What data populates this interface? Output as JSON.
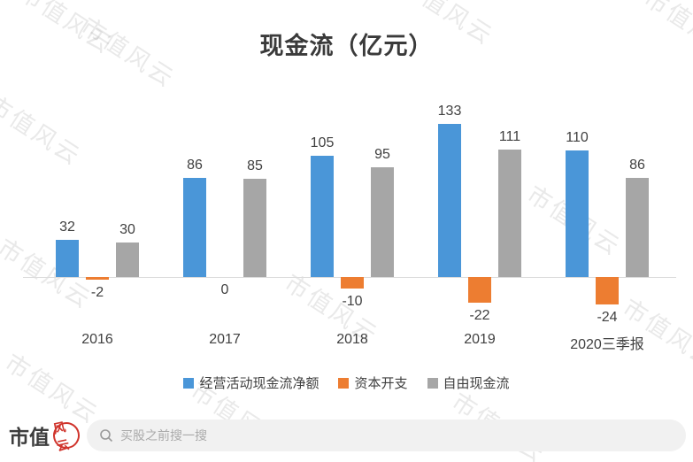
{
  "title": "现金流（亿元）",
  "watermark": {
    "text": "市值风云"
  },
  "logo": {
    "brand": "市值",
    "seal": "风云"
  },
  "search": {
    "placeholder": "买股之前搜一搜",
    "icon": "search-icon"
  },
  "chart_data": {
    "type": "bar",
    "title": "现金流（亿元）",
    "categories": [
      "2016",
      "2017",
      "2018",
      "2019",
      "2020三季报"
    ],
    "series": [
      {
        "name": "经营活动现金流净额",
        "color": "#4A96D8",
        "values": [
          32,
          86,
          105,
          133,
          110
        ]
      },
      {
        "name": "资本开支",
        "color": "#ED7D31",
        "values": [
          -2,
          0,
          -10,
          -22,
          -24
        ]
      },
      {
        "name": "自由现金流",
        "color": "#A6A6A6",
        "values": [
          30,
          85,
          95,
          111,
          86
        ]
      }
    ],
    "legend_position": "bottom",
    "grid": false,
    "data_labels": true,
    "ylim": [
      -40,
      160
    ]
  }
}
